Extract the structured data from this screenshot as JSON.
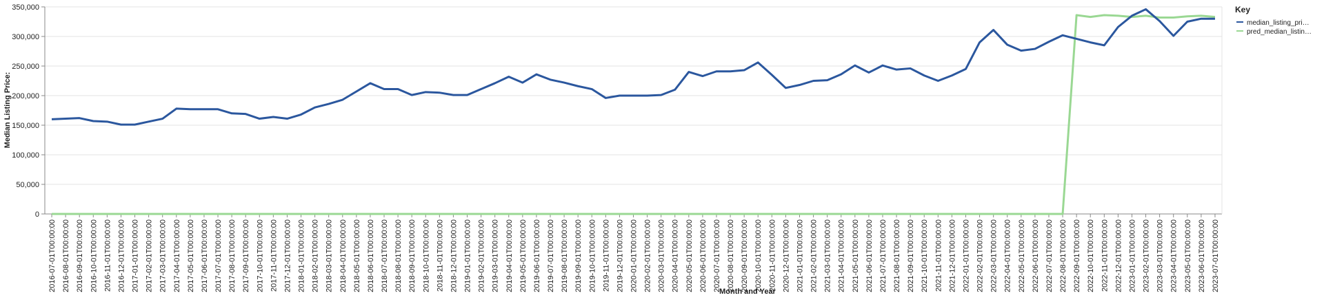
{
  "chart_data": {
    "type": "line",
    "x_label": "Month and Year",
    "y_label": "Median Listing Price:",
    "legend_title": "Key",
    "legend_position": "right",
    "grid": true,
    "categories": [
      "2016-07-01T00:00:00",
      "2016-08-01T00:00:00",
      "2016-09-01T00:00:00",
      "2016-10-01T00:00:00",
      "2016-11-01T00:00:00",
      "2016-12-01T00:00:00",
      "2017-01-01T00:00:00",
      "2017-02-01T00:00:00",
      "2017-03-01T00:00:00",
      "2017-04-01T00:00:00",
      "2017-05-01T00:00:00",
      "2017-06-01T00:00:00",
      "2017-07-01T00:00:00",
      "2017-08-01T00:00:00",
      "2017-09-01T00:00:00",
      "2017-10-01T00:00:00",
      "2017-11-01T00:00:00",
      "2017-12-01T00:00:00",
      "2018-01-01T00:00:00",
      "2018-02-01T00:00:00",
      "2018-03-01T00:00:00",
      "2018-04-01T00:00:00",
      "2018-05-01T00:00:00",
      "2018-06-01T00:00:00",
      "2018-07-01T00:00:00",
      "2018-08-01T00:00:00",
      "2018-09-01T00:00:00",
      "2018-10-01T00:00:00",
      "2018-11-01T00:00:00",
      "2018-12-01T00:00:00",
      "2019-01-01T00:00:00",
      "2019-02-01T00:00:00",
      "2019-03-01T00:00:00",
      "2019-04-01T00:00:00",
      "2019-05-01T00:00:00",
      "2019-06-01T00:00:00",
      "2019-07-01T00:00:00",
      "2019-08-01T00:00:00",
      "2019-09-01T00:00:00",
      "2019-10-01T00:00:00",
      "2019-11-01T00:00:00",
      "2019-12-01T00:00:00",
      "2020-01-01T00:00:00",
      "2020-02-01T00:00:00",
      "2020-03-01T00:00:00",
      "2020-04-01T00:00:00",
      "2020-05-01T00:00:00",
      "2020-06-01T00:00:00",
      "2020-07-01T00:00:00",
      "2020-08-01T00:00:00",
      "2020-09-01T00:00:00",
      "2020-10-01T00:00:00",
      "2020-11-01T00:00:00",
      "2020-12-01T00:00:00",
      "2021-01-01T00:00:00",
      "2021-02-01T00:00:00",
      "2021-03-01T00:00:00",
      "2021-04-01T00:00:00",
      "2021-05-01T00:00:00",
      "2021-06-01T00:00:00",
      "2021-07-01T00:00:00",
      "2021-08-01T00:00:00",
      "2021-09-01T00:00:00",
      "2021-10-01T00:00:00",
      "2021-11-01T00:00:00",
      "2021-12-01T00:00:00",
      "2022-01-01T00:00:00",
      "2022-02-01T00:00:00",
      "2022-03-01T00:00:00",
      "2022-04-01T00:00:00",
      "2022-05-01T00:00:00",
      "2022-06-01T00:00:00",
      "2022-07-01T00:00:00",
      "2022-08-01T00:00:00",
      "2022-09-01T00:00:00",
      "2022-10-01T00:00:00",
      "2022-11-01T00:00:00",
      "2022-12-01T00:00:00",
      "2023-01-01T00:00:00",
      "2023-02-01T00:00:00",
      "2023-03-01T00:00:00",
      "2023-04-01T00:00:00",
      "2023-05-01T00:00:00",
      "2023-06-01T00:00:00",
      "2023-07-01T00:00:00"
    ],
    "series": [
      {
        "name": "median_listing_pri…",
        "color": "#2b579e",
        "values": [
          160000,
          161000,
          162000,
          157000,
          156000,
          151000,
          151000,
          156000,
          161000,
          178000,
          177000,
          177000,
          177000,
          170000,
          169000,
          161000,
          164000,
          161000,
          168000,
          180000,
          186000,
          193000,
          207000,
          221000,
          211000,
          211000,
          201000,
          206000,
          205000,
          201000,
          201000,
          211000,
          221000,
          232000,
          222000,
          236000,
          227000,
          222000,
          216000,
          211000,
          196000,
          200000,
          200000,
          200000,
          201000,
          210000,
          240000,
          233000,
          241000,
          241000,
          243000,
          256000,
          235000,
          213000,
          218000,
          225000,
          226000,
          236000,
          251000,
          239000,
          251000,
          244000,
          246000,
          234000,
          225000,
          234000,
          245000,
          290000,
          311000,
          286000,
          276000,
          279000,
          291000,
          302000,
          296000,
          290000,
          285000,
          316000,
          335000,
          346000,
          326000,
          301000,
          325000,
          330000,
          330000
        ]
      },
      {
        "name": "pred_median_listin…",
        "color": "#9ad893",
        "values": [
          0,
          0,
          0,
          0,
          0,
          0,
          0,
          0,
          0,
          0,
          0,
          0,
          0,
          0,
          0,
          0,
          0,
          0,
          0,
          0,
          0,
          0,
          0,
          0,
          0,
          0,
          0,
          0,
          0,
          0,
          0,
          0,
          0,
          0,
          0,
          0,
          0,
          0,
          0,
          0,
          0,
          0,
          0,
          0,
          0,
          0,
          0,
          0,
          0,
          0,
          0,
          0,
          0,
          0,
          0,
          0,
          0,
          0,
          0,
          0,
          0,
          0,
          0,
          0,
          0,
          0,
          0,
          0,
          0,
          0,
          0,
          0,
          0,
          0,
          336000,
          333000,
          336000,
          335000,
          333000,
          335000,
          332000,
          332000,
          334000,
          335000,
          333000
        ]
      }
    ],
    "ylim": [
      0,
      350000
    ],
    "yticks": [
      0,
      {
        "value": 50000,
        "label": "50,000"
      },
      {
        "value": 100000,
        "label": "100,000"
      },
      {
        "value": 150000,
        "label": "150,000"
      },
      {
        "value": 200000,
        "label": "200,000"
      },
      {
        "value": 250000,
        "label": "250,000"
      },
      {
        "value": 300000,
        "label": "300,000"
      },
      {
        "value": 350000,
        "label": "350,000"
      }
    ]
  }
}
